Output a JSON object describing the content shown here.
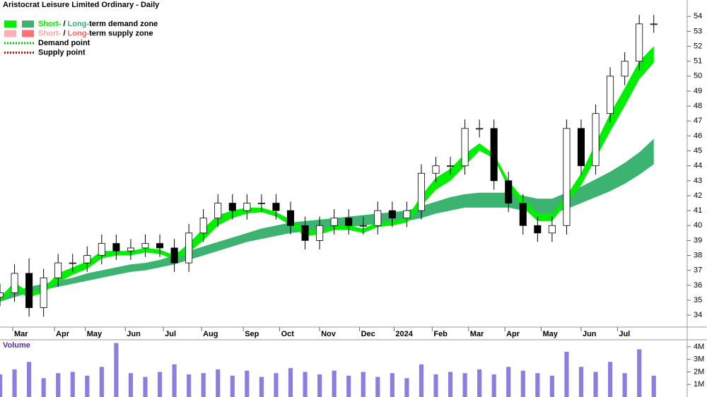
{
  "chart_data": [
    {
      "type": "candlestick",
      "title": "Aristocrat Leisure Limited Ordinary - Daily",
      "legend": [
        {
          "parts": [
            "Short-",
            " / ",
            "Long-",
            "term demand zone"
          ],
          "colors": [
            "#00ee00",
            "#000000",
            "#3cb371",
            "#000000"
          ],
          "swatches": [
            "#00ee00",
            "#3cb371"
          ]
        },
        {
          "parts": [
            "Short-",
            " / ",
            "Long-",
            "term supply zone"
          ],
          "colors": [
            "#f4a6a6",
            "#000000",
            "#ff6060",
            "#000000"
          ],
          "swatches": [
            "#f8b4b4",
            "#ff7070"
          ]
        },
        {
          "parts": [
            "Demand point"
          ],
          "colors": [
            "#000000"
          ],
          "dotted": "#00cc00"
        },
        {
          "parts": [
            "Supply point"
          ],
          "colors": [
            "#000000"
          ],
          "dotted": "#dd0000"
        }
      ],
      "x": [
        0,
        8,
        16,
        24,
        32,
        40,
        48,
        56,
        64,
        72,
        80,
        88,
        96,
        104,
        112,
        120,
        128,
        136,
        144,
        152,
        160,
        168,
        176,
        184,
        192,
        200,
        208,
        216,
        224,
        232,
        240,
        248,
        256,
        264,
        272,
        280,
        288,
        296,
        304,
        312,
        320,
        328,
        336,
        344,
        352,
        360
      ],
      "open": [
        35.2,
        35.5,
        36.8,
        34.5,
        36.5,
        37.5,
        37.5,
        38,
        38.8,
        38.3,
        38.5,
        38.8,
        38.5,
        37.5,
        39.5,
        40.5,
        41.5,
        41,
        41.5,
        41.5,
        41,
        40,
        39,
        40,
        40.5,
        40,
        40,
        41,
        40.5,
        41,
        43.5,
        44,
        44,
        46.5,
        46.5,
        43,
        41.5,
        40,
        39.5,
        40,
        46.5,
        44,
        47.5,
        50,
        51,
        53.5
      ],
      "high": [
        36.1,
        37.4,
        37.8,
        37.1,
        38.1,
        38.1,
        38.6,
        39.4,
        39.4,
        39.1,
        39.4,
        39.4,
        39.1,
        40.1,
        41.1,
        42.1,
        42.1,
        42.1,
        42.1,
        42.1,
        41.6,
        40.6,
        40.6,
        41.1,
        41.1,
        40.6,
        41.6,
        41.6,
        41.6,
        44.1,
        44.6,
        44.6,
        47.1,
        47.1,
        47.1,
        43.6,
        42.1,
        40.6,
        40.6,
        47.1,
        47.1,
        48.1,
        50.6,
        51.6,
        54.1,
        54.1
      ],
      "low": [
        34.6,
        34.9,
        33.9,
        33.9,
        35.9,
        36.9,
        36.9,
        37.4,
        37.7,
        37.7,
        37.9,
        37.9,
        36.9,
        36.9,
        38.9,
        39.9,
        40.4,
        40.4,
        40.9,
        40.4,
        39.4,
        38.4,
        38.4,
        39.4,
        39.4,
        39.4,
        39.4,
        39.9,
        39.9,
        40.4,
        42.9,
        43.4,
        43.4,
        45.9,
        42.4,
        40.9,
        39.4,
        38.9,
        38.9,
        39.4,
        43.4,
        43.4,
        46.9,
        49.4,
        50.4,
        52.9
      ],
      "close": [
        35.5,
        36.8,
        34.5,
        36.5,
        37.5,
        37.5,
        38,
        38.8,
        38.3,
        38.5,
        38.8,
        38.5,
        37.5,
        39.5,
        40.5,
        41.5,
        41,
        41.5,
        41.5,
        41,
        40,
        39,
        40,
        40.5,
        40,
        40,
        41,
        40.5,
        41,
        43.5,
        44,
        44,
        46.5,
        46.5,
        43,
        41.5,
        40,
        39.5,
        40,
        46.5,
        44,
        47.5,
        50,
        51,
        53.5,
        53.5
      ],
      "bands": [
        {
          "color": "#3cb371",
          "upper": [
            35.3,
            35.6,
            35.9,
            36.1,
            36.3,
            36.5,
            36.8,
            37,
            37.2,
            37.4,
            37.5,
            37.7,
            38,
            38.3,
            38.6,
            38.9,
            39.2,
            39.5,
            39.8,
            40,
            40.2,
            40.3,
            40.4,
            40.5,
            40.6,
            40.7,
            40.8,
            40.9,
            41,
            41.3,
            41.6,
            41.9,
            42.1,
            42.2,
            42.2,
            42.2,
            42,
            41.8,
            41.8,
            42.2,
            42.6,
            43.1,
            43.6,
            44.2,
            44.9,
            45.8
          ],
          "lower": [
            34.9,
            35.2,
            35.5,
            35.7,
            35.9,
            36.1,
            36.3,
            36.5,
            36.7,
            36.9,
            37,
            37.2,
            37.4,
            37.7,
            38,
            38.3,
            38.6,
            38.9,
            39.1,
            39.3,
            39.5,
            39.6,
            39.7,
            39.8,
            39.9,
            40,
            40.1,
            40.2,
            40.3,
            40.5,
            40.8,
            41,
            41.2,
            41.2,
            41.2,
            41.2,
            41,
            40.8,
            40.8,
            41.1,
            41.5,
            41.9,
            42.3,
            42.8,
            43.4,
            44.1
          ]
        },
        {
          "color": "#00ee00",
          "upper": [
            35.2,
            36.2,
            35.5,
            35.8,
            36.8,
            37.2,
            37.6,
            38.3,
            38.3,
            38.3,
            38.5,
            38.4,
            38,
            38.8,
            39.8,
            40.7,
            41,
            41.2,
            41.2,
            40.9,
            40.4,
            39.7,
            39.7,
            40,
            40,
            39.8,
            40.2,
            40.3,
            40.5,
            42,
            43.2,
            43.8,
            44.8,
            45.5,
            44.8,
            43,
            41.8,
            40.8,
            40.8,
            42,
            43.5,
            45.5,
            47.5,
            49.2,
            51,
            52
          ],
          "lower": [
            34.9,
            35.6,
            35.2,
            35.5,
            36.2,
            36.7,
            37.1,
            37.8,
            38,
            38,
            38.2,
            38.1,
            37.7,
            38.2,
            39,
            40,
            40.5,
            40.8,
            40.9,
            40.6,
            40,
            39.3,
            39.4,
            39.7,
            39.7,
            39.5,
            39.9,
            40,
            40.2,
            41.3,
            42.4,
            43,
            44,
            45,
            44.5,
            42.5,
            41.2,
            40.3,
            40.3,
            41.5,
            42.7,
            44.5,
            46.3,
            48,
            49.8,
            50.9
          ]
        }
      ],
      "xlim": [
        0,
        364
      ],
      "xticks": [
        {
          "value": 7,
          "label": "Mar"
        },
        {
          "value": 30,
          "label": "Apr"
        },
        {
          "value": 47,
          "label": "May"
        },
        {
          "value": 69,
          "label": "Jun"
        },
        {
          "value": 90,
          "label": "Jul"
        },
        {
          "value": 111,
          "label": "Aug"
        },
        {
          "value": 134,
          "label": "Sep"
        },
        {
          "value": 154,
          "label": "Oct"
        },
        {
          "value": 176,
          "label": "Nov"
        },
        {
          "value": 198,
          "label": "Dec"
        },
        {
          "value": 217,
          "label": "2024"
        },
        {
          "value": 238,
          "label": "Feb"
        },
        {
          "value": 258,
          "label": "Mar"
        },
        {
          "value": 278,
          "label": "Apr"
        },
        {
          "value": 298,
          "label": "May"
        },
        {
          "value": 320,
          "label": "Jun"
        },
        {
          "value": 340,
          "label": "Jul"
        }
      ],
      "ylim": [
        33.25,
        55.1
      ],
      "yticks": [
        34,
        35,
        36,
        37,
        38,
        39,
        40,
        41,
        42,
        43,
        44,
        45,
        46,
        47,
        48,
        49,
        50,
        51,
        52,
        53,
        54
      ]
    },
    {
      "type": "bar",
      "y_label": "Volume",
      "color": "#8a7fe0",
      "x": [
        0,
        8,
        16,
        24,
        32,
        40,
        48,
        56,
        64,
        72,
        80,
        88,
        96,
        104,
        112,
        120,
        128,
        136,
        144,
        152,
        160,
        168,
        176,
        184,
        192,
        200,
        208,
        216,
        224,
        232,
        240,
        248,
        256,
        264,
        272,
        280,
        288,
        296,
        304,
        312,
        320,
        328,
        336,
        344,
        352,
        360
      ],
      "values": [
        1800000,
        2200000,
        2800000,
        1500000,
        1900000,
        2000000,
        1700000,
        2400000,
        4300000,
        1900000,
        1600000,
        2000000,
        2600000,
        1800000,
        1900000,
        2200000,
        1700000,
        2100000,
        1600000,
        1900000,
        2300000,
        2000000,
        1800000,
        2100000,
        1700000,
        2000000,
        1600000,
        1900000,
        1500000,
        2600000,
        1800000,
        2000000,
        1900000,
        2200000,
        1800000,
        2400000,
        2100000,
        1900000,
        1700000,
        3600000,
        2400000,
        2000000,
        2800000,
        1900000,
        3800000,
        1700000
      ],
      "xlim": [
        0,
        364
      ],
      "ylim": [
        0,
        4500000
      ],
      "yticks": [
        {
          "value": 1000000,
          "label": "1M"
        },
        {
          "value": 2000000,
          "label": "2M"
        },
        {
          "value": 3000000,
          "label": "3M"
        },
        {
          "value": 4000000,
          "label": "4M"
        }
      ]
    }
  ]
}
